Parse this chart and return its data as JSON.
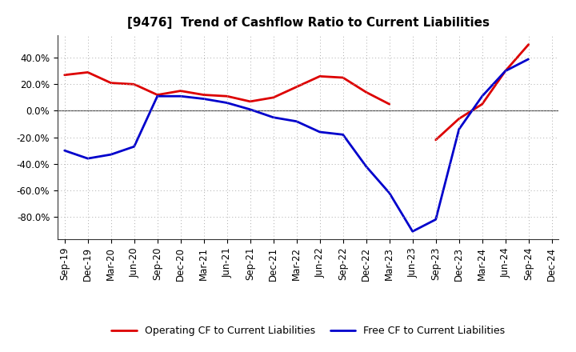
{
  "title": "[9476]  Trend of Cashflow Ratio to Current Liabilities",
  "x_labels": [
    "Sep-19",
    "Dec-19",
    "Mar-20",
    "Jun-20",
    "Sep-20",
    "Dec-20",
    "Mar-21",
    "Jun-21",
    "Sep-21",
    "Dec-21",
    "Mar-22",
    "Jun-22",
    "Sep-22",
    "Dec-22",
    "Mar-23",
    "Jun-23",
    "Sep-23",
    "Dec-23",
    "Mar-24",
    "Jun-24",
    "Sep-24",
    "Dec-24"
  ],
  "operating_cf": [
    27.0,
    29.0,
    21.0,
    20.0,
    12.0,
    15.0,
    12.0,
    11.0,
    7.0,
    10.0,
    18.0,
    26.0,
    25.0,
    14.0,
    5.0,
    null,
    -22.0,
    -6.0,
    5.0,
    30.0,
    50.0,
    null
  ],
  "free_cf": [
    -30.0,
    -36.0,
    -33.0,
    -27.0,
    11.0,
    11.0,
    9.0,
    6.0,
    1.0,
    -5.0,
    -8.0,
    -16.0,
    -18.0,
    -42.0,
    -62.0,
    -91.0,
    -82.0,
    -14.0,
    11.0,
    30.0,
    39.0,
    null
  ],
  "ylim": [
    -97,
    57
  ],
  "yticks": [
    -80,
    -60,
    -40,
    -20,
    0,
    20,
    40
  ],
  "operating_color": "#dd0000",
  "free_color": "#0000cc",
  "background_color": "#ffffff",
  "plot_bg_color": "#ffffff",
  "grid_color": "#aaaaaa",
  "legend_operating": "Operating CF to Current Liabilities",
  "legend_free": "Free CF to Current Liabilities",
  "title_fontsize": 11,
  "tick_fontsize": 8.5,
  "legend_fontsize": 9
}
